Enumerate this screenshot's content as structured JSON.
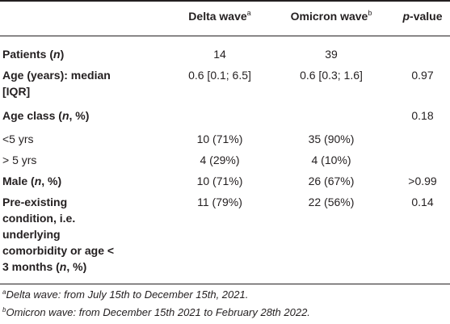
{
  "headers": {
    "delta": "Delta wave",
    "delta_sup": "a",
    "omicron": "Omicron wave",
    "omicron_sup": "b",
    "p_italic": "p",
    "p_rest": "-value"
  },
  "rows": [
    {
      "label": "Patients (",
      "label_n": "n",
      "label_end": ")",
      "delta": "14",
      "omicron": "39",
      "p": ""
    },
    {
      "label_line1": "Age (years): median",
      "label_line2": "[IQR]",
      "delta": "0.6 [0.1; 6.5]",
      "omicron": "0.6 [0.3; 1.6]",
      "p": "0.97"
    },
    {
      "label": "Age class (",
      "label_n": "n",
      "label_end": ", %)",
      "delta": "",
      "omicron": "",
      "p": "0.18"
    },
    {
      "label": "<5 yrs",
      "delta": "10 (71%)",
      "omicron": "35 (90%)",
      "p": ""
    },
    {
      "label": "> 5 yrs",
      "delta": "4 (29%)",
      "omicron": "4 (10%)",
      "p": ""
    },
    {
      "label": "Male (",
      "label_n": "n",
      "label_end": ", %)",
      "delta": "10 (71%)",
      "omicron": "26 (67%)",
      "p": ">0.99"
    },
    {
      "label_lines": [
        "Pre-existing",
        "condition, i.e.",
        "underlying",
        "comorbidity or age <",
        "3 months ("
      ],
      "label_n": "n",
      "label_end": ", %)",
      "delta": "11 (79%)",
      "omicron": "22 (56%)",
      "p": "0.14"
    }
  ],
  "footnotes": [
    {
      "sup": "a",
      "text": "Delta wave: from July 15th to December 15th, 2021."
    },
    {
      "sup": "b",
      "text": "Omicron wave: from December 15th 2021 to February 28th 2022."
    }
  ]
}
